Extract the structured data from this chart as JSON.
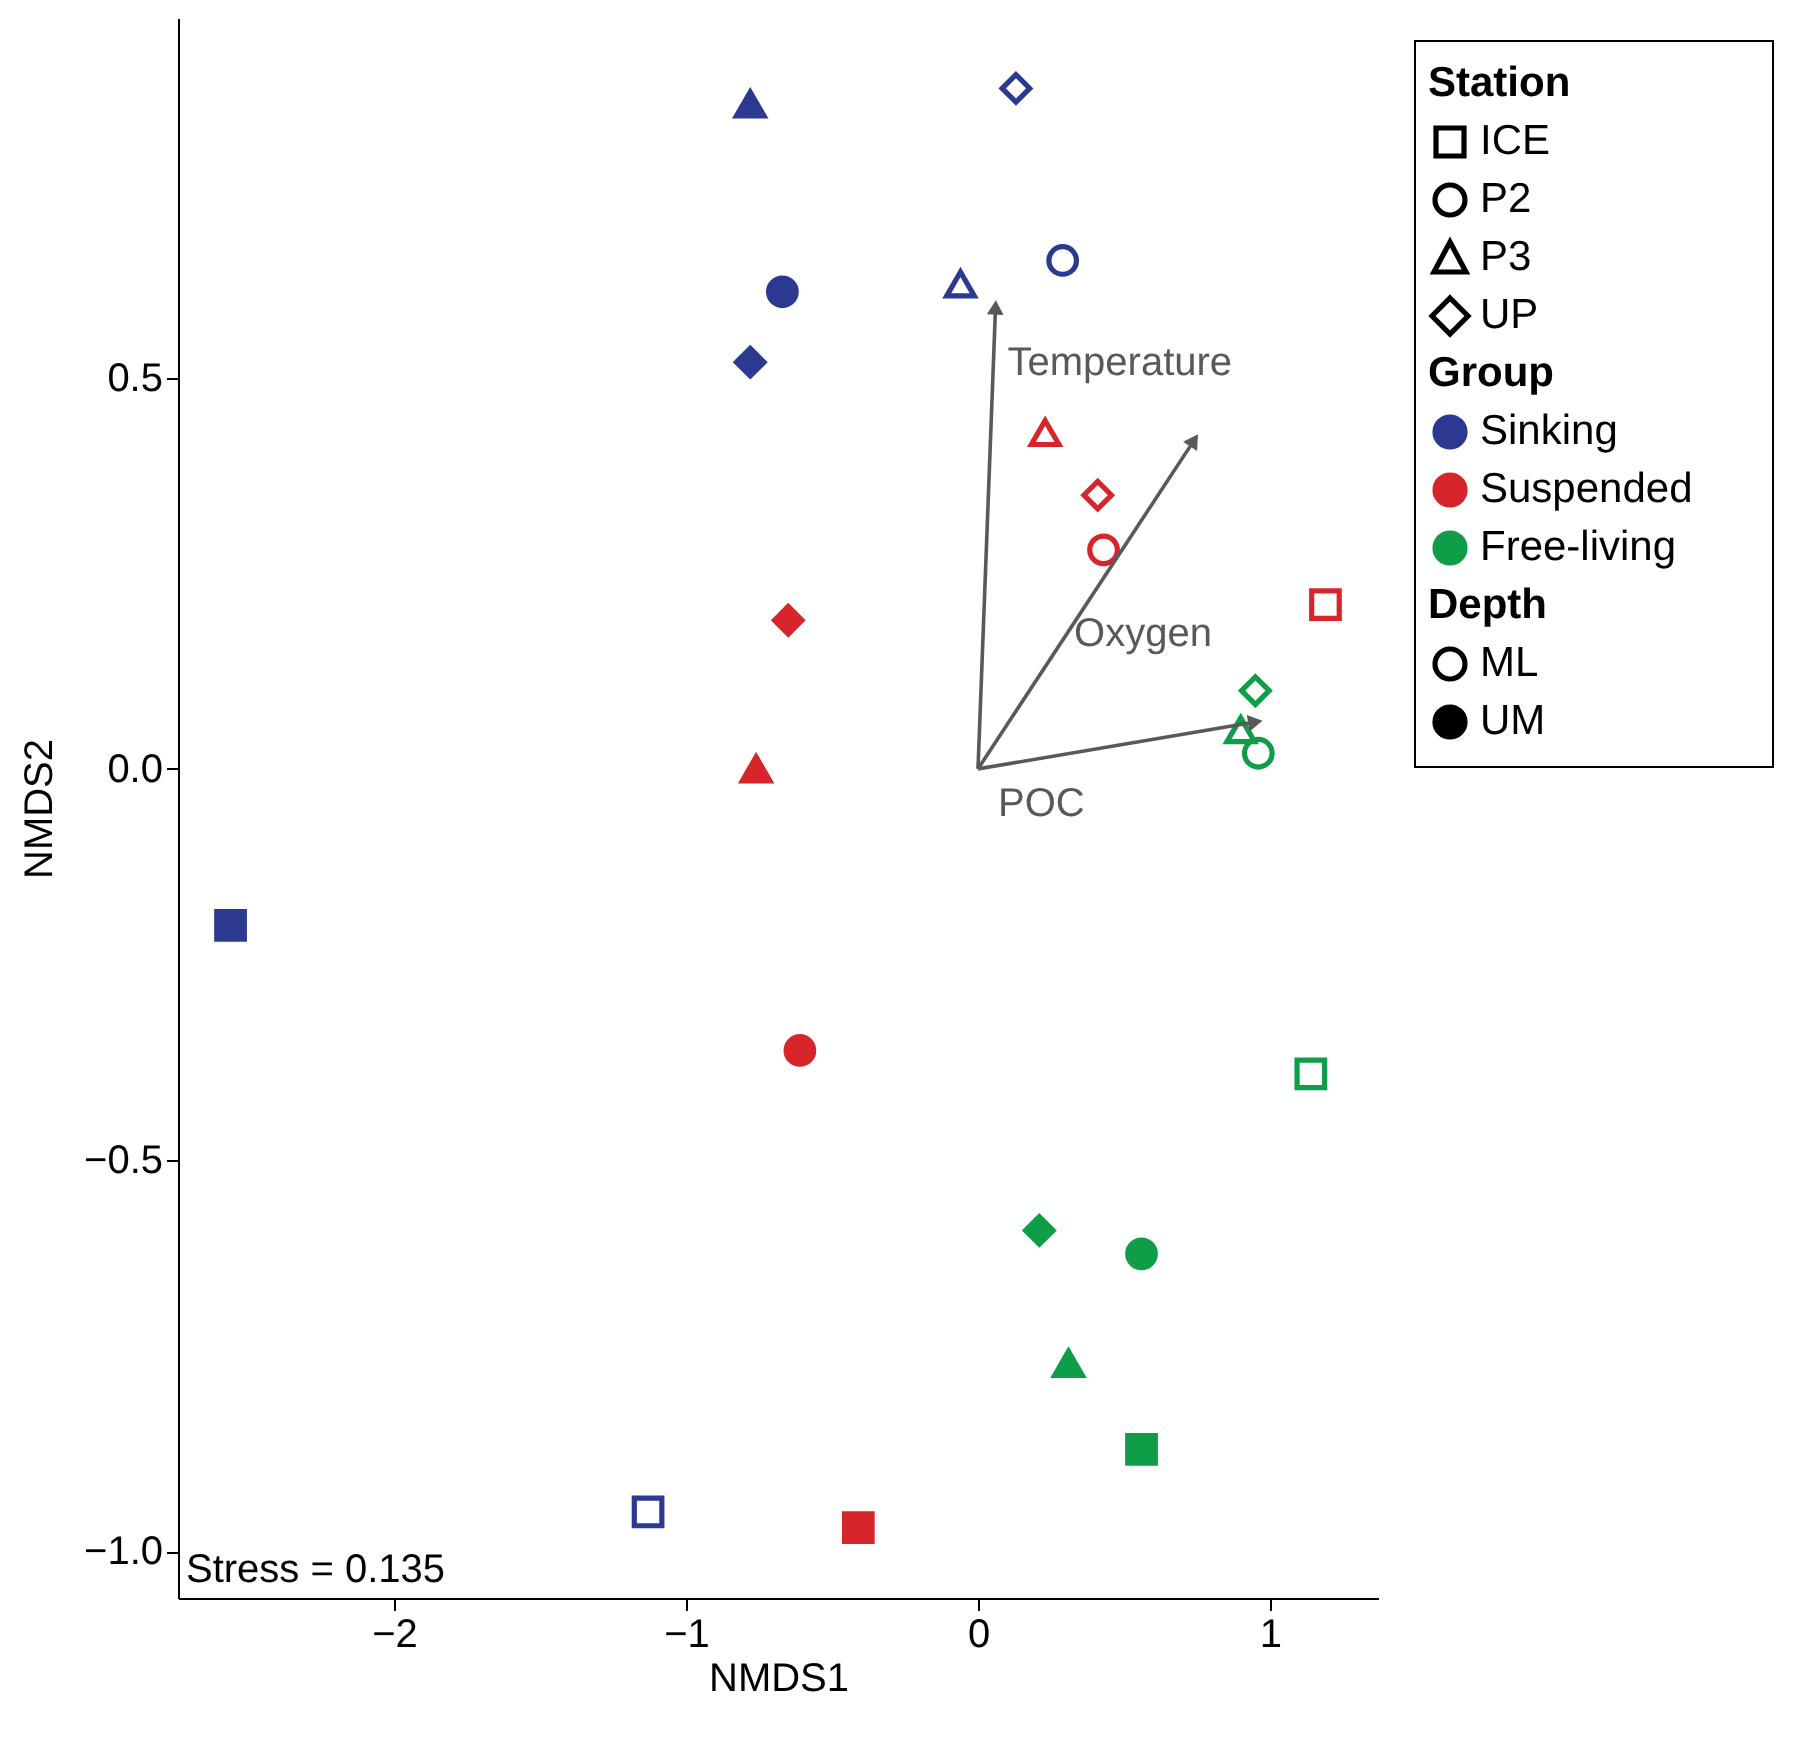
{
  "chart_data": {
    "type": "scatter",
    "xlabel": "NMDS1",
    "ylabel": "NMDS2",
    "xlim": [
      -2.74,
      1.37
    ],
    "ylim": [
      -1.06,
      0.96
    ],
    "xticks": [
      {
        "value": -2,
        "label": "−2"
      },
      {
        "value": -1,
        "label": "−1"
      },
      {
        "value": 0,
        "label": "0"
      },
      {
        "value": 1,
        "label": "1"
      }
    ],
    "yticks": [
      {
        "value": -1,
        "label": "−1.0"
      },
      {
        "value": -0.5,
        "label": "−0.5"
      },
      {
        "value": 0,
        "label": "0.0"
      },
      {
        "value": 0.5,
        "label": "0.5"
      }
    ],
    "grid": false,
    "legend": "top right",
    "legend_title": "Group",
    "series": [
      {
        "color": "#2b3990",
        "marker": "square",
        "x": [
          -1.13,
          -2.56
        ],
        "values": [
          -0.95,
          -0.2
        ]
      },
      {
        "name": "Sinking",
        "color": "#2b3990",
        "marker": "circle",
        "x": [
          0.29,
          -0.67
        ],
        "values": [
          0.65,
          0.61
        ]
      },
      {
        "color": "#2b3990",
        "marker": "triangle",
        "x": [
          -0.06,
          -0.78
        ],
        "values": [
          0.62,
          0.85
        ]
      },
      {
        "color": "#2b3990",
        "marker": "diamond",
        "x": [
          0.13,
          -0.78
        ],
        "values": [
          0.87,
          0.52
        ]
      },
      {
        "color": "#d7262b",
        "marker": "square",
        "x": [
          1.19,
          -0.41
        ],
        "values": [
          0.21,
          -0.97
        ]
      },
      {
        "name": "Suspended",
        "color": "#d7262b",
        "marker": "circle",
        "x": [
          0.43,
          -0.61
        ],
        "values": [
          0.28,
          -0.36
        ]
      },
      {
        "color": "#d7262b",
        "marker": "triangle",
        "x": [
          0.23,
          -0.76
        ],
        "values": [
          0.43,
          0.0
        ]
      },
      {
        "color": "#d7262b",
        "marker": "diamond",
        "x": [
          0.41,
          -0.65
        ],
        "values": [
          0.35,
          0.19
        ]
      },
      {
        "color": "#0f9d48",
        "marker": "square",
        "x": [
          1.14,
          0.56
        ],
        "values": [
          -0.39,
          -0.87
        ]
      },
      {
        "name": "Free-living",
        "color": "#0f9d48",
        "marker": "circle",
        "x": [
          0.96,
          0.56
        ],
        "values": [
          0.02,
          -0.62
        ]
      },
      {
        "color": "#0f9d48",
        "marker": "triangle",
        "x": [
          0.9,
          0.31
        ],
        "values": [
          0.05,
          -0.76
        ]
      },
      {
        "color": "#0f9d48",
        "marker": "diamond",
        "x": [
          0.95,
          0.21
        ],
        "values": [
          0.1,
          -0.59
        ]
      },
      {
        "name": "Temperature",
        "type": "line",
        "color": "#595959",
        "line_style": "solid",
        "x": [
          0,
          0.06
        ],
        "values": [
          0,
          0.59
        ]
      },
      {
        "name": "Oxygen",
        "type": "line",
        "color": "#595959",
        "line_style": "solid",
        "x": [
          0,
          0.74
        ],
        "values": [
          0,
          0.42
        ]
      },
      {
        "name": "POC",
        "type": "line",
        "color": "#595959",
        "line_style": "solid",
        "x": [
          0,
          0.95
        ],
        "values": [
          0,
          0.06
        ]
      }
    ],
    "annotations": [
      "Stress = 0.135",
      "Station",
      "ICE",
      "P2",
      "P3",
      "UP",
      "Depth",
      "ML",
      "UM"
    ]
  }
}
